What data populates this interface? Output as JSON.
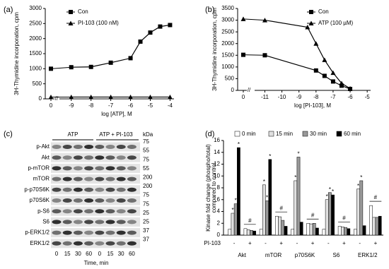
{
  "chart_data": [
    {
      "type": "line",
      "label": "(a)",
      "ylabel": "3H-Thymidine incorporation, cpm",
      "xlabel": "log [ATP], M",
      "xlim": [
        -9.6,
        -3.8
      ],
      "xticks": [
        -9,
        -8,
        -7,
        -6,
        -5,
        -4
      ],
      "xbreak_tick": 0,
      "ylim": [
        0,
        3000
      ],
      "yticks": [
        0,
        500,
        1000,
        1500,
        2000,
        2500,
        3000
      ],
      "series": [
        {
          "name": "Con",
          "marker": "square",
          "color": "#000000",
          "control": 1000,
          "x": [
            -9,
            -8,
            -7,
            -6,
            -5.5,
            -5,
            -4.5,
            -4
          ],
          "values": [
            1050,
            1060,
            1200,
            1350,
            1900,
            2200,
            2400,
            2450
          ]
        },
        {
          "name": "PI-103 (100 nM)",
          "marker": "triangle",
          "color": "#000000",
          "control": 60,
          "x": [
            -9,
            -8,
            -7,
            -6,
            -5,
            -4
          ],
          "values": [
            60,
            60,
            60,
            60,
            60,
            60
          ]
        }
      ]
    },
    {
      "type": "line",
      "label": "(b)",
      "ylabel": "3H-Thymidine incorporation, cpm",
      "xlabel": "log [PI-103], M",
      "xlim": [
        -11.6,
        -4.8
      ],
      "xticks": [
        -11,
        -10,
        -9,
        -8,
        -7,
        -6,
        -5
      ],
      "xbreak_tick": 0,
      "ylim": [
        0,
        3500
      ],
      "yticks": [
        0,
        500,
        1000,
        1500,
        2000,
        2500,
        3000,
        3500
      ],
      "series": [
        {
          "name": "Con",
          "marker": "square",
          "color": "#000000",
          "control": 1520,
          "x": [
            -11,
            -8,
            -7.5,
            -7,
            -6.5,
            -6
          ],
          "values": [
            1500,
            850,
            620,
            380,
            200,
            60
          ]
        },
        {
          "name": "ATP (100 µM)",
          "marker": "triangle",
          "color": "#000000",
          "control": 3050,
          "x": [
            -11,
            -8.5,
            -8,
            -7.5,
            -7,
            -6.5,
            -6
          ],
          "values": [
            3000,
            2700,
            2000,
            1300,
            750,
            300,
            80
          ]
        }
      ]
    },
    {
      "type": "bar",
      "label": "(d)",
      "ylabel": [
        "Kinase fold change (phospho/total)",
        "compared to control"
      ],
      "row_label": "PI-103",
      "star_text": "*",
      "hash_text": "#",
      "categories": [
        "-",
        "+",
        "-",
        "+",
        "-",
        "+",
        "-",
        "+",
        "-",
        "+"
      ],
      "groups": [
        "Akt",
        "mTOR",
        "p70S6K",
        "S6",
        "ERK1/2"
      ],
      "hash": [
        false,
        true,
        false,
        true,
        false,
        true,
        false,
        true,
        false,
        true
      ],
      "ylim": [
        0,
        16
      ],
      "yticks": [
        0,
        2,
        4,
        6,
        8,
        10,
        12,
        14,
        16
      ],
      "series": [
        {
          "name": "0 min",
          "color": "#ffffff",
          "values": [
            1,
            1.1,
            1,
            3.2,
            1,
            2.0,
            1,
            1.5,
            1,
            5.0
          ],
          "starred": [
            false,
            false,
            false,
            false,
            false,
            false,
            false,
            false,
            false,
            false
          ]
        },
        {
          "name": "15 min",
          "color": "#e0e0e0",
          "values": [
            3.7,
            0.9,
            8.5,
            3.1,
            9.2,
            1.9,
            6.0,
            1.4,
            7.8,
            3.0
          ],
          "starred": [
            true,
            false,
            true,
            false,
            true,
            false,
            true,
            false,
            true,
            false
          ]
        },
        {
          "name": "30 min",
          "color": "#999999",
          "values": [
            5.3,
            0.8,
            5.8,
            2.5,
            13.2,
            2.0,
            7.2,
            1.3,
            9.2,
            3.0
          ],
          "starred": [
            true,
            false,
            true,
            false,
            true,
            false,
            true,
            false,
            true,
            false
          ]
        },
        {
          "name": "60 min",
          "color": "#000000",
          "values": [
            14.8,
            0.7,
            12.8,
            1.5,
            2.2,
            1.2,
            6.8,
            1.1,
            1.6,
            3.2
          ],
          "starred": [
            true,
            false,
            true,
            false,
            false,
            false,
            true,
            false,
            false,
            false
          ]
        }
      ]
    }
  ],
  "blot": {
    "label": "(c)",
    "header": [
      "ATP",
      "ATP + PI-103"
    ],
    "unit": "kDa",
    "rows": [
      "p-Akt",
      "Akt",
      "p-mTOR",
      "mTOR",
      "p-p70S6K",
      "p70S6K",
      "p-S6",
      "S6",
      "p-ERK1/2",
      "ERK1/2"
    ],
    "markers": [
      "75",
      "55",
      "75",
      "55",
      "200",
      "200",
      "75",
      "75",
      "25",
      "25",
      "37",
      "37"
    ],
    "lanes": [
      "0",
      "15",
      "30",
      "60",
      "0",
      "15",
      "30",
      "60"
    ],
    "xlabel": "Time, min"
  }
}
